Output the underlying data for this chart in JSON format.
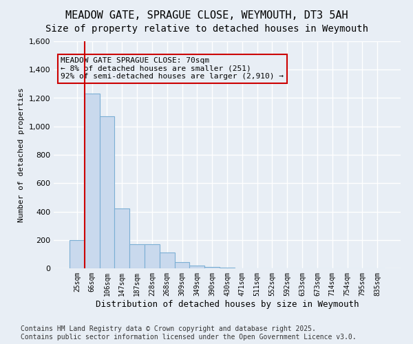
{
  "title": "MEADOW GATE, SPRAGUE CLOSE, WEYMOUTH, DT3 5AH",
  "subtitle": "Size of property relative to detached houses in Weymouth",
  "xlabel": "Distribution of detached houses by size in Weymouth",
  "ylabel": "Number of detached properties",
  "footnote": "Contains HM Land Registry data © Crown copyright and database right 2025.\nContains public sector information licensed under the Open Government Licence v3.0.",
  "bin_labels": [
    "25sqm",
    "66sqm",
    "106sqm",
    "147sqm",
    "187sqm",
    "228sqm",
    "268sqm",
    "309sqm",
    "349sqm",
    "390sqm",
    "430sqm",
    "471sqm",
    "511sqm",
    "552sqm",
    "592sqm",
    "633sqm",
    "673sqm",
    "714sqm",
    "754sqm",
    "795sqm",
    "835sqm"
  ],
  "bar_values": [
    200,
    1230,
    1070,
    420,
    170,
    170,
    110,
    45,
    20,
    8,
    5,
    0,
    0,
    0,
    0,
    0,
    0,
    0,
    0,
    0,
    0
  ],
  "bar_color": "#c9d9ed",
  "bar_edge_color": "#7bafd4",
  "background_color": "#e8eef5",
  "grid_color": "#ffffff",
  "property_line_color": "#cc0000",
  "annotation_text": "MEADOW GATE SPRAGUE CLOSE: 70sqm\n← 8% of detached houses are smaller (251)\n92% of semi-detached houses are larger (2,910) →",
  "annotation_box_color": "#cc0000",
  "ylim": [
    0,
    1600
  ],
  "yticks": [
    0,
    200,
    400,
    600,
    800,
    1000,
    1200,
    1400,
    1600
  ],
  "title_fontsize": 11,
  "subtitle_fontsize": 10,
  "annotation_fontsize": 8,
  "footnote_fontsize": 7
}
